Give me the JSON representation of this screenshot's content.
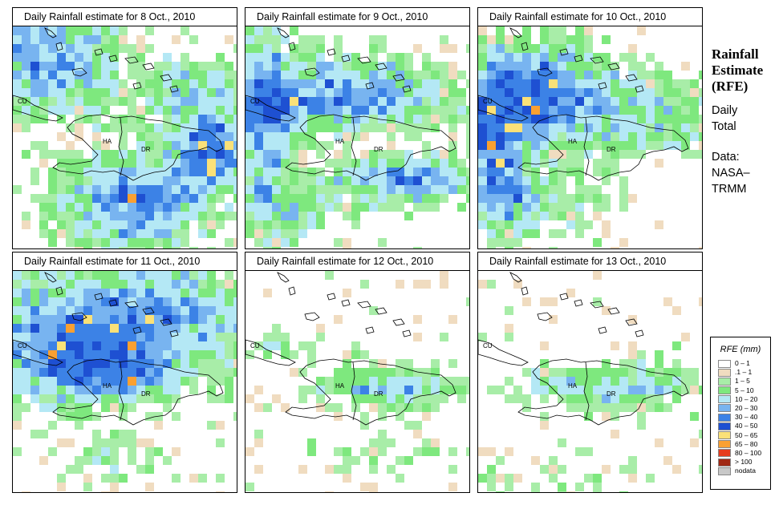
{
  "panels": [
    {
      "title": "Daily Rainfall estimate for  8 Oct., 2010"
    },
    {
      "title": "Daily Rainfall estimate for  9 Oct., 2010"
    },
    {
      "title": "Daily Rainfall estimate for  10 Oct., 2010"
    },
    {
      "title": "Daily Rainfall estimate for  11 Oct., 2010"
    },
    {
      "title": "Daily Rainfall estimate for  12 Oct., 2010"
    },
    {
      "title": "Daily Rainfall estimate for  13 Oct., 2010"
    }
  ],
  "map_labels": {
    "cu": "CU",
    "ha": "HA",
    "dr": "DR"
  },
  "side": {
    "title_line1": "Rainfall",
    "title_line2": "Estimate",
    "title_line3": "(RFE)",
    "daily_line1": "Daily",
    "daily_line2": "Total",
    "data_line1": "Data:",
    "data_line2": "NASA–",
    "data_line3": "TRMM"
  },
  "legend": {
    "title": "RFE (mm)",
    "items": [
      {
        "label": "0 – 1",
        "color": "#ffffff"
      },
      {
        "label": ".1 – 1",
        "color": "#f0dcc0"
      },
      {
        "label": "1 – 5",
        "color": "#a8eda8"
      },
      {
        "label": "5 – 10",
        "color": "#7ee87e"
      },
      {
        "label": "10 – 20",
        "color": "#b4e8f5"
      },
      {
        "label": "20 – 30",
        "color": "#78b4f0"
      },
      {
        "label": "30 – 40",
        "color": "#3c82e6"
      },
      {
        "label": "40 – 50",
        "color": "#1e50d2"
      },
      {
        "label": "50 – 65",
        "color": "#fae178"
      },
      {
        "label": "65 – 80",
        "color": "#faa032"
      },
      {
        "label": "80 – 100",
        "color": "#e63c1e"
      },
      {
        "label": "> 100",
        "color": "#a02814"
      },
      {
        "label": "nodata",
        "color": "#c8c8c8"
      }
    ]
  }
}
